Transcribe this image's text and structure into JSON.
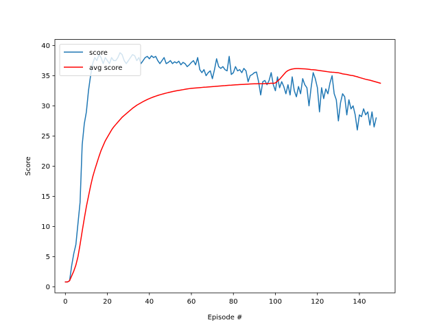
{
  "chart_data": {
    "type": "line",
    "title": "",
    "xlabel": "Episode #",
    "ylabel": "Score",
    "xlim": [
      -5,
      157
    ],
    "ylim": [
      -1,
      41
    ],
    "xticks": [
      0,
      20,
      40,
      60,
      80,
      100,
      120,
      140
    ],
    "yticks": [
      0,
      5,
      10,
      15,
      20,
      25,
      30,
      35,
      40
    ],
    "grid": false,
    "legend": "top-left",
    "series": [
      {
        "name": "score",
        "color": "#1f77b4",
        "values": [
          0.8,
          0.8,
          1.0,
          3.5,
          5.5,
          7.0,
          10.5,
          14.0,
          23.5,
          27.0,
          29.0,
          32.5,
          35.0,
          37.0,
          38.0,
          37.5,
          38.5,
          38.0,
          37.0,
          38.0,
          37.5,
          37.0,
          38.0,
          37.5,
          37.5,
          38.0,
          38.8,
          38.5,
          37.5,
          37.0,
          37.5,
          38.0,
          38.5,
          38.3,
          37.5,
          38.0,
          37.0,
          37.5,
          38.0,
          38.2,
          37.8,
          38.3,
          38.0,
          38.2,
          37.5,
          37.0,
          37.5,
          38.0,
          37.0,
          37.2,
          37.5,
          37.0,
          37.3,
          37.1,
          37.4,
          36.8,
          37.2,
          37.0,
          36.5,
          36.8,
          37.2,
          37.5,
          36.8,
          38.0,
          36.0,
          35.5,
          36.0,
          35.0,
          35.5,
          35.8,
          34.5,
          36.0,
          37.8,
          36.5,
          36.2,
          36.5,
          36.0,
          35.8,
          38.2,
          35.2,
          35.5,
          36.5,
          35.8,
          36.0,
          35.5,
          36.2,
          35.8,
          34.0,
          35.0,
          35.2,
          35.5,
          35.6,
          34.0,
          31.8,
          34.0,
          34.2,
          33.5,
          34.2,
          35.5,
          33.5,
          32.5,
          34.8,
          33.0,
          34.0,
          33.2,
          32.0,
          33.5,
          31.8,
          34.8,
          32.5,
          31.5,
          33.2,
          32.0,
          34.5,
          33.5,
          33.0,
          30.0,
          33.0,
          35.5,
          34.5,
          33.0,
          29.0,
          33.0,
          31.2,
          32.8,
          32.0,
          33.8,
          35.0,
          32.0,
          31.0,
          27.5,
          30.5,
          32.0,
          31.5,
          28.5,
          31.0,
          29.5,
          30.0,
          28.5,
          26.0,
          28.5,
          28.2,
          29.5,
          28.5,
          29.0,
          26.8,
          29.0,
          26.5,
          28.0
        ]
      },
      {
        "name": "avg score",
        "color": "#ff0000",
        "values": [
          0.8,
          0.8,
          1.0,
          1.8,
          2.6,
          3.6,
          5.0,
          7.0,
          9.2,
          11.3,
          13.3,
          15.0,
          16.7,
          18.2,
          19.4,
          20.5,
          21.6,
          22.6,
          23.4,
          24.2,
          24.8,
          25.4,
          26.0,
          26.5,
          26.9,
          27.3,
          27.7,
          28.1,
          28.4,
          28.7,
          29.0,
          29.3,
          29.6,
          29.85,
          30.1,
          30.3,
          30.5,
          30.7,
          30.88,
          31.05,
          31.2,
          31.35,
          31.48,
          31.6,
          31.72,
          31.83,
          31.93,
          32.02,
          32.11,
          32.2,
          32.28,
          32.36,
          32.43,
          32.5,
          32.56,
          32.62,
          32.68,
          32.74,
          32.8,
          32.85,
          32.9,
          32.93,
          32.96,
          32.99,
          33.02,
          33.05,
          33.08,
          33.1,
          33.13,
          33.16,
          33.19,
          33.21,
          33.24,
          33.27,
          33.3,
          33.33,
          33.35,
          33.38,
          33.41,
          33.43,
          33.46,
          33.48,
          33.5,
          33.52,
          33.54,
          33.56,
          33.58,
          33.6,
          33.62,
          33.64,
          33.65,
          33.66,
          33.67,
          33.67,
          33.67,
          33.68,
          33.69,
          33.7,
          33.75,
          33.72,
          33.8,
          34.1,
          34.4,
          34.8,
          35.2,
          35.6,
          35.85,
          36.0,
          36.1,
          36.15,
          36.18,
          36.18,
          36.16,
          36.14,
          36.12,
          36.1,
          36.05,
          36.0,
          35.98,
          35.95,
          35.9,
          35.85,
          35.8,
          35.75,
          35.7,
          35.65,
          35.6,
          35.57,
          35.55,
          35.52,
          35.48,
          35.4,
          35.3,
          35.25,
          35.2,
          35.12,
          35.05,
          35.0,
          34.9,
          34.82,
          34.7,
          34.6,
          34.5,
          34.4,
          34.32,
          34.25,
          34.15,
          34.05,
          33.95,
          33.85,
          33.75
        ]
      }
    ]
  }
}
